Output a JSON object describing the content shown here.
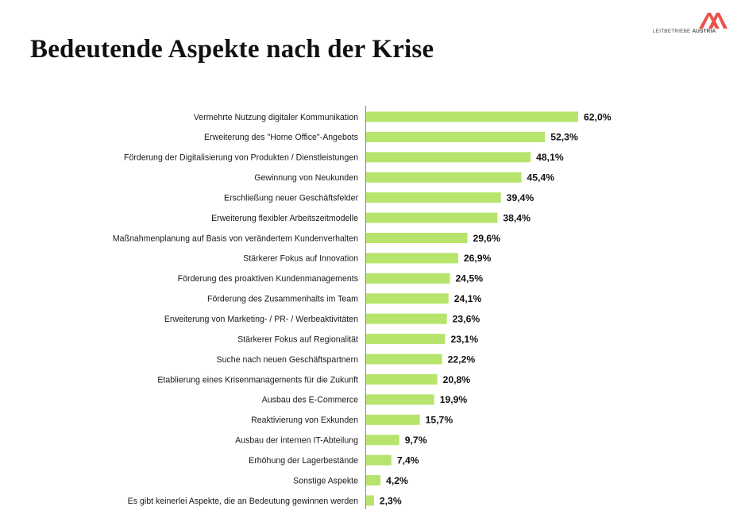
{
  "title": "Bedeutende Aspekte nach der Krise",
  "logo": {
    "text_light": "LEITBETRIEBE ",
    "text_bold": "AUSTRIA",
    "color": "#e8544a"
  },
  "chart_data": {
    "type": "bar",
    "orientation": "horizontal",
    "bar_color": "#b6e46c",
    "xlim": [
      0,
      62
    ],
    "categories": [
      "Vermehrte Nutzung digitaler Kommunikation",
      "Erweiterung des \"Home Office\"-Angebots",
      "Förderung der Digitalisierung von Produkten / Dienstleistungen",
      "Gewinnung von Neukunden",
      "Erschließung neuer Geschäftsfelder",
      "Erweiterung flexibler Arbeitszeitmodelle",
      "Maßnahmenplanung auf Basis von verändertem Kundenverhalten",
      "Stärkerer Fokus auf Innovation",
      "Förderung des proaktiven Kundenmanagements",
      "Förderung des Zusammenhalts im Team",
      "Erweiterung von Marketing- / PR- / Werbeaktivitäten",
      "Stärkerer Fokus auf Regionalität",
      "Suche nach neuen Geschäftspartnern",
      "Etablierung eines Krisenmanagements für die Zukunft",
      "Ausbau des E-Commerce",
      "Reaktivierung von Exkunden",
      "Ausbau der internen IT-Abteilung",
      "Erhöhung der Lagerbestände",
      "Sonstige Aspekte",
      "Es gibt keinerlei Aspekte, die an Bedeutung gewinnen werden"
    ],
    "values": [
      62.0,
      52.3,
      48.1,
      45.4,
      39.4,
      38.4,
      29.6,
      26.9,
      24.5,
      24.1,
      23.6,
      23.1,
      22.2,
      20.8,
      19.9,
      15.7,
      9.7,
      7.4,
      4.2,
      2.3
    ],
    "value_labels": [
      "62,0%",
      "52,3%",
      "48,1%",
      "45,4%",
      "39,4%",
      "38,4%",
      "29,6%",
      "26,9%",
      "24,5%",
      "24,1%",
      "23,6%",
      "23,1%",
      "22,2%",
      "20,8%",
      "19,9%",
      "15,7%",
      "9,7%",
      "7,4%",
      "4,2%",
      "2,3%"
    ]
  }
}
